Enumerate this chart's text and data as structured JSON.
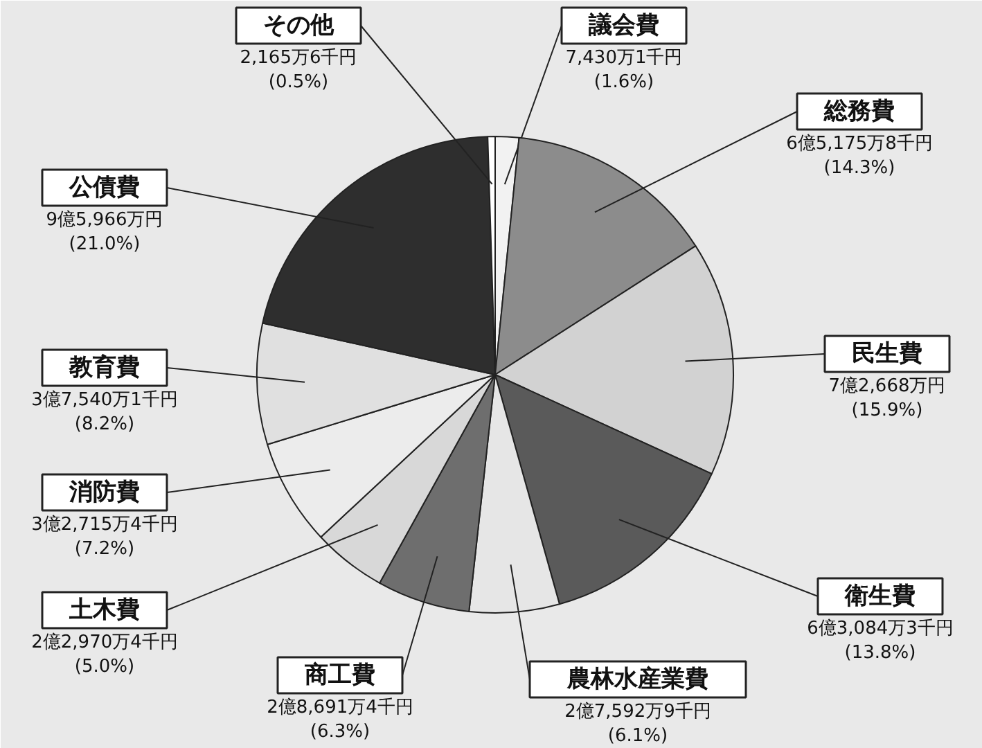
{
  "chart_data": {
    "type": "pie",
    "categories": [
      "議会費",
      "総務費",
      "民生費",
      "衛生費",
      "農林水産業費",
      "商工費",
      "土木費",
      "消防費",
      "教育費",
      "公債費",
      "その他"
    ],
    "values": [
      1.6,
      14.3,
      15.9,
      13.8,
      6.1,
      6.3,
      5.0,
      7.2,
      8.2,
      21.0,
      0.5
    ],
    "colors": [
      "#f2f2f2",
      "#8c8c8c",
      "#d2d2d2",
      "#5a5a5a",
      "#e6e6e6",
      "#6e6e6e",
      "#d8d8d8",
      "#ececec",
      "#e0e0e0",
      "#2e2e2e",
      "#ffffff"
    ],
    "value_labels": [
      "7,430万1千円\n(1.6%)",
      "6億5,175万8千円\n(14.3%)",
      "7億2,668万円\n(15.9%)",
      "6億3,084万3千円\n(13.8%)",
      "2億7,592万9千円\n(6.1%)",
      "2億8,691万4千円\n(6.3%)",
      "2億2,970万4千円\n(5.0%)",
      "3億2,715万4千円\n(7.2%)",
      "3億7,540万1千円\n(8.2%)",
      "9億5,966万円\n(21.0%)",
      "2,165万6千円\n(0.5%)"
    ]
  }
}
